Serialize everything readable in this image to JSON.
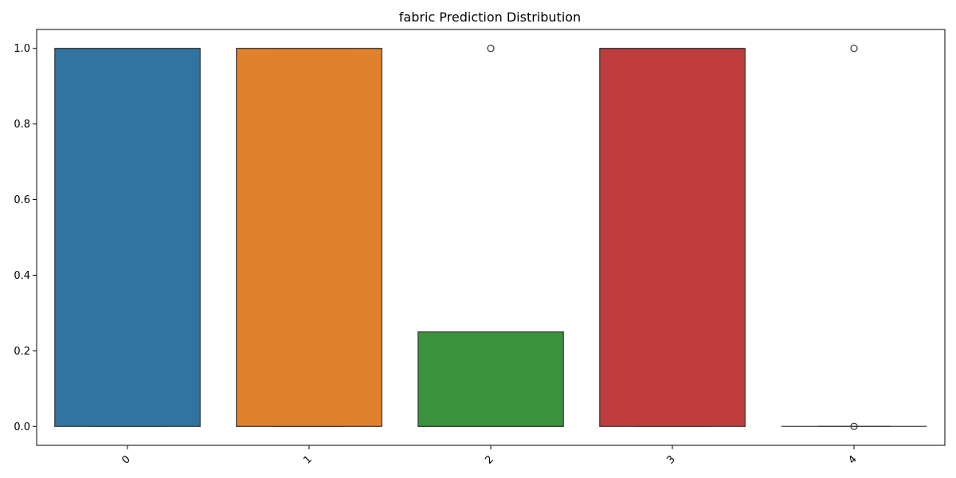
{
  "chart_data": {
    "type": "boxplot",
    "title": "fabric Prediction Distribution",
    "xlabel": "",
    "ylabel": "",
    "categories": [
      "0",
      "1",
      "2",
      "3",
      "4"
    ],
    "ylim": [
      -0.05,
      1.05
    ],
    "yticks": [
      0.0,
      0.2,
      0.4,
      0.6,
      0.8,
      1.0
    ],
    "ytick_labels": [
      "0.0",
      "0.2",
      "0.4",
      "0.6",
      "0.8",
      "1.0"
    ],
    "xtick_rotation_deg": 45,
    "grid": false,
    "legend": "none",
    "boxes": [
      {
        "category": "0",
        "whisker_low": 0.0,
        "q1": 0.0,
        "median": 1.0,
        "q3": 1.0,
        "whisker_high": 1.0,
        "outliers": [],
        "color": "#3274a1"
      },
      {
        "category": "1",
        "whisker_low": 0.0,
        "q1": 0.0,
        "median": 1.0,
        "q3": 1.0,
        "whisker_high": 1.0,
        "outliers": [],
        "color": "#e1812c"
      },
      {
        "category": "2",
        "whisker_low": 0.0,
        "q1": 0.0,
        "median": 0.0,
        "q3": 0.25,
        "whisker_high": 0.25,
        "outliers": [
          1.0
        ],
        "color": "#3a923a"
      },
      {
        "category": "3",
        "whisker_low": 0.0,
        "q1": 0.0,
        "median": 1.0,
        "q3": 1.0,
        "whisker_high": 1.0,
        "outliers": [],
        "color": "#c03d3e"
      },
      {
        "category": "4",
        "whisker_low": 0.0,
        "q1": 0.0,
        "median": 0.0,
        "q3": 0.0,
        "whisker_high": 0.0,
        "outliers": [
          1.0,
          0.0
        ],
        "color": "#9372b2"
      }
    ],
    "edge_color": "#3d3d3d"
  }
}
